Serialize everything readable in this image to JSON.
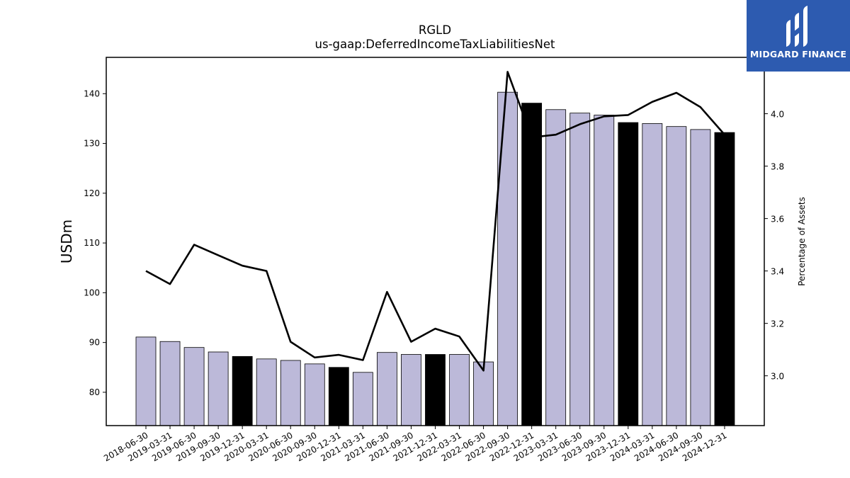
{
  "brand": {
    "name": "MIDGARD FINANCE",
    "color": "#2d5bb0"
  },
  "chart_data": {
    "type": "bar",
    "title": "RGLD",
    "subtitle": "us-gaap:DeferredIncomeTaxLiabilitiesNet",
    "ylabel": "USDm",
    "y2label": "Percentage of Assets",
    "categories": [
      "2018-06-30",
      "2019-03-31",
      "2019-06-30",
      "2019-09-30",
      "2019-12-31",
      "2020-03-31",
      "2020-06-30",
      "2020-09-30",
      "2020-12-31",
      "2021-03-31",
      "2021-06-30",
      "2021-09-30",
      "2021-12-31",
      "2022-03-31",
      "2022-06-30",
      "2022-09-30",
      "2022-12-31",
      "2023-03-31",
      "2023-06-30",
      "2023-09-30",
      "2023-12-31",
      "2024-03-31",
      "2024-06-30",
      "2024-09-30",
      "2024-12-31"
    ],
    "series": [
      {
        "type": "bar",
        "axis": "left",
        "values": [
          91.1,
          90.2,
          89.0,
          88.1,
          87.2,
          86.7,
          86.4,
          85.7,
          85.0,
          84.0,
          88.0,
          87.6,
          87.6,
          87.6,
          86.1,
          140.3,
          138.1,
          136.8,
          136.1,
          135.7,
          134.2,
          134.0,
          133.4,
          132.8,
          132.2
        ]
      },
      {
        "type": "line",
        "axis": "right",
        "values": [
          3.4,
          3.35,
          3.5,
          3.46,
          3.42,
          3.4,
          3.13,
          3.07,
          3.08,
          3.06,
          3.32,
          3.13,
          3.18,
          3.15,
          3.02,
          4.16,
          3.91,
          3.92,
          3.96,
          3.99,
          3.995,
          4.045,
          4.08,
          4.025,
          3.92
        ]
      }
    ],
    "highlight_categories": [
      "2019-12-31",
      "2020-12-31",
      "2021-12-31",
      "2022-12-31",
      "2023-12-31",
      "2024-12-31"
    ],
    "ylim": [
      73.3,
      147.3
    ],
    "y2lim": [
      2.81,
      4.215
    ],
    "yticks": [
      80,
      90,
      100,
      110,
      120,
      130,
      140
    ],
    "y2ticks": [
      3.0,
      3.2,
      3.4,
      3.6,
      3.8,
      4.0
    ],
    "colors": {
      "bar": "#bcb9d9",
      "bar_highlight": "#000000",
      "line": "#000000"
    },
    "grid": false,
    "legend": "none"
  }
}
